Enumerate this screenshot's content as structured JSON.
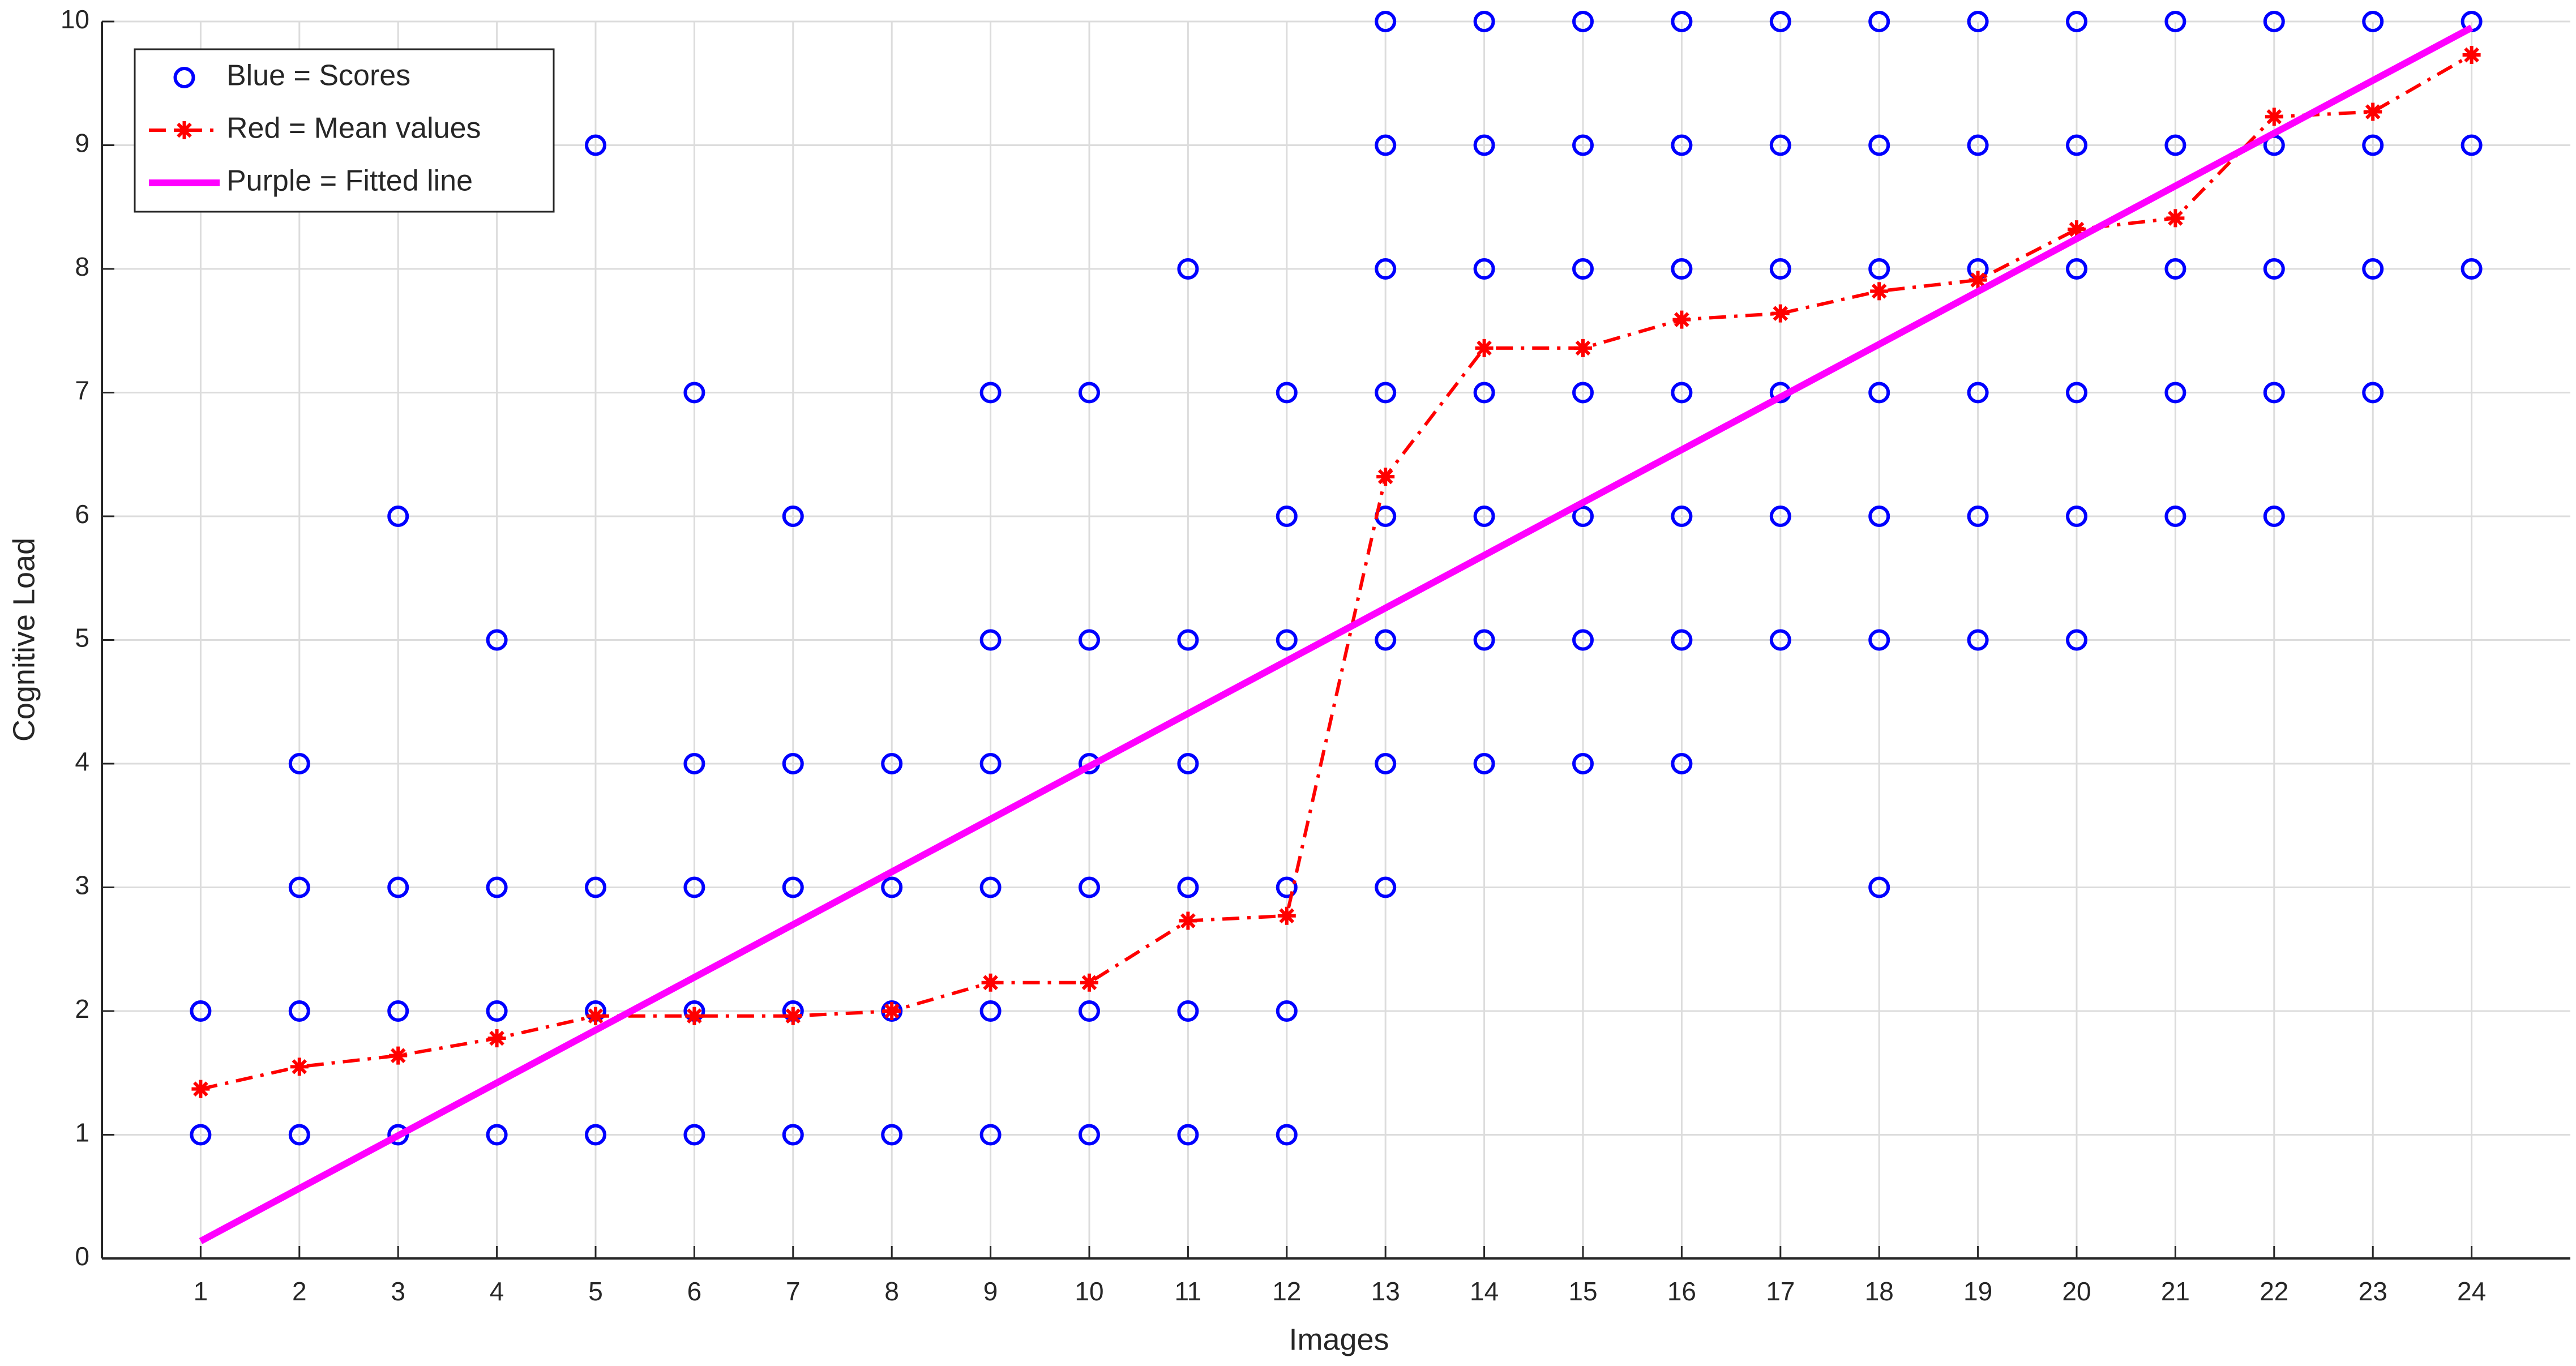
{
  "chart_data": {
    "type": "scatter",
    "xlabel": "Images",
    "ylabel": "Cognitive Load",
    "xlim": [
      0,
      25
    ],
    "xticks": [
      1,
      2,
      3,
      4,
      5,
      6,
      7,
      8,
      9,
      10,
      11,
      12,
      13,
      14,
      15,
      16,
      17,
      18,
      19,
      20,
      21,
      22,
      23,
      24
    ],
    "ylim": [
      0,
      10
    ],
    "yticks": [
      0,
      1,
      2,
      3,
      4,
      5,
      6,
      7,
      8,
      9,
      10
    ],
    "grid": true,
    "legend": "upper left",
    "series": [
      {
        "name": "Blue = Scores",
        "color": "#0000ff",
        "style": "markers",
        "x": [
          1,
          1,
          2,
          2,
          2,
          2,
          3,
          3,
          3,
          3,
          4,
          4,
          4,
          4,
          5,
          5,
          5,
          5,
          6,
          6,
          6,
          6,
          6,
          7,
          7,
          7,
          7,
          7,
          8,
          8,
          8,
          8,
          9,
          9,
          9,
          9,
          9,
          9,
          10,
          10,
          10,
          10,
          10,
          10,
          11,
          11,
          11,
          11,
          11,
          11,
          12,
          12,
          12,
          12,
          12,
          12,
          13,
          13,
          13,
          13,
          13,
          13,
          13,
          13,
          14,
          14,
          14,
          14,
          14,
          14,
          14,
          15,
          15,
          15,
          15,
          15,
          15,
          15,
          16,
          16,
          16,
          16,
          16,
          16,
          16,
          17,
          17,
          17,
          17,
          17,
          17,
          18,
          18,
          18,
          18,
          18,
          18,
          18,
          19,
          19,
          19,
          19,
          19,
          19,
          20,
          20,
          20,
          20,
          20,
          20,
          21,
          21,
          21,
          21,
          21,
          22,
          22,
          22,
          22,
          22,
          23,
          23,
          23,
          23,
          24,
          24,
          24
        ],
        "values": [
          1,
          2,
          1,
          2,
          3,
          4,
          1,
          2,
          3,
          6,
          1,
          2,
          3,
          5,
          1,
          2,
          3,
          9,
          1,
          2,
          3,
          4,
          7,
          1,
          2,
          3,
          4,
          6,
          1,
          2,
          3,
          4,
          1,
          2,
          3,
          4,
          5,
          7,
          1,
          2,
          3,
          4,
          5,
          7,
          1,
          2,
          3,
          4,
          5,
          8,
          1,
          2,
          3,
          5,
          6,
          7,
          3,
          4,
          5,
          6,
          7,
          8,
          9,
          10,
          4,
          5,
          6,
          7,
          8,
          9,
          10,
          4,
          5,
          6,
          7,
          8,
          9,
          10,
          4,
          5,
          6,
          7,
          8,
          9,
          10,
          5,
          6,
          7,
          8,
          9,
          10,
          3,
          5,
          6,
          7,
          8,
          9,
          10,
          5,
          6,
          7,
          8,
          9,
          10,
          5,
          6,
          7,
          8,
          9,
          10,
          6,
          7,
          8,
          9,
          10,
          6,
          7,
          8,
          9,
          10,
          7,
          8,
          9,
          10,
          8,
          9,
          10
        ]
      },
      {
        "name": "Red = Mean values",
        "color": "#ff0000",
        "style": "dash-dot-star",
        "x": [
          1,
          2,
          3,
          4,
          5,
          6,
          7,
          8,
          9,
          10,
          11,
          12,
          13,
          14,
          15,
          16,
          17,
          18,
          19,
          20,
          21,
          22,
          23,
          24
        ],
        "values": [
          1.37,
          1.55,
          1.64,
          1.78,
          1.96,
          1.96,
          1.96,
          2.0,
          2.23,
          2.23,
          2.73,
          2.77,
          6.32,
          7.36,
          7.36,
          7.59,
          7.64,
          7.82,
          7.91,
          8.32,
          8.41,
          9.23,
          9.27,
          9.73
        ]
      },
      {
        "name": "Purple = Fitted line",
        "color": "#ff00ff",
        "style": "line",
        "x": [
          1,
          24
        ],
        "values": [
          0.14,
          9.95
        ]
      }
    ]
  }
}
